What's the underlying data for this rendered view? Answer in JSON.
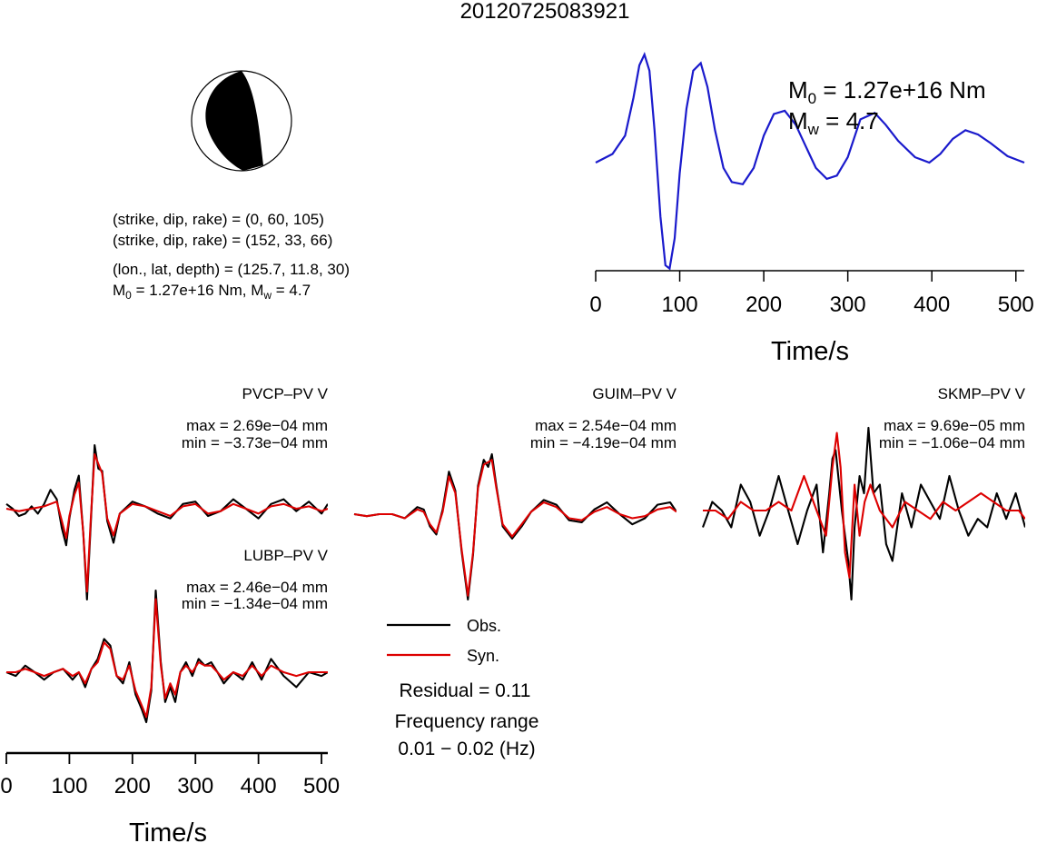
{
  "title": "20120725083921",
  "beachball": {
    "strike_dip_rake_1": "(strike, dip, rake) = (0, 60, 105)",
    "strike_dip_rake_2": "(strike, dip, rake) = (152, 33, 66)",
    "location": "(lon., lat, depth) = (125.7, 11.8, 30)",
    "moment_prefix": "M",
    "moment_sub": "0",
    "moment_value": " = 1.27e+16 Nm, M",
    "mw_sub": "w",
    "mw_value": " = 4.7"
  },
  "stf": {
    "m0_sym": "M",
    "m0_sub": "0",
    "m0_value": " = 1.27e+16 Nm",
    "mw_sym": "M",
    "mw_sub": "w",
    "mw_value": " = 4.7",
    "xlabel": "Time/s",
    "xticks": [
      "0",
      "100",
      "200",
      "300",
      "400",
      "500"
    ]
  },
  "stations": [
    {
      "name": "PVCP–PV V",
      "max": "max = 2.69e−04 mm",
      "min": "min = −3.73e−04 mm"
    },
    {
      "name": "GUIM–PV V",
      "max": "max = 2.54e−04 mm",
      "min": "min = −4.19e−04 mm"
    },
    {
      "name": "SKMP–PV V",
      "max": "max = 9.69e−05 mm",
      "min": "min = −1.06e−04 mm"
    },
    {
      "name": "LUBP–PV V",
      "max": "max = 2.46e−04 mm",
      "min": "min = −1.34e−04 mm"
    }
  ],
  "waveform_axis": {
    "xlabel": "Time/s",
    "xticks": [
      "0",
      "100",
      "200",
      "300",
      "400",
      "500"
    ]
  },
  "legend": {
    "obs_label": "Obs.",
    "syn_label": "Syn.",
    "residual": "Residual = 0.11",
    "freq_title": "Frequency range",
    "freq_value": "0.01 − 0.02 (Hz)"
  },
  "colors": {
    "observed": "#000000",
    "synthetic": "#dd0000",
    "stf": "#1a1acc"
  },
  "chart_data": [
    {
      "type": "line",
      "name": "source time function",
      "xlabel": "Time/s",
      "xlim": [
        0,
        510
      ],
      "ylim": [
        -1.0,
        1.0
      ],
      "x": [
        0,
        20,
        35,
        45,
        52,
        58,
        64,
        70,
        77,
        83,
        88,
        94,
        100,
        108,
        116,
        125,
        133,
        142,
        152,
        162,
        175,
        188,
        200,
        212,
        225,
        238,
        250,
        262,
        275,
        287,
        300,
        315,
        332,
        345,
        360,
        380,
        397,
        410,
        425,
        440,
        455,
        470,
        490,
        510
      ],
      "y": [
        0.0,
        0.08,
        0.25,
        0.6,
        0.9,
        1.0,
        0.85,
        0.3,
        -0.5,
        -0.95,
        -0.98,
        -0.7,
        -0.1,
        0.5,
        0.85,
        0.92,
        0.7,
        0.3,
        -0.05,
        -0.18,
        -0.2,
        -0.05,
        0.25,
        0.45,
        0.48,
        0.35,
        0.15,
        -0.05,
        -0.15,
        -0.12,
        0.05,
        0.4,
        0.46,
        0.35,
        0.2,
        0.05,
        0.0,
        0.08,
        0.22,
        0.3,
        0.26,
        0.18,
        0.06,
        0.0
      ]
    },
    {
      "type": "line",
      "name": "PVCP-PV V",
      "xlim": [
        0,
        510
      ],
      "ylim": [
        -0.000373,
        0.000269
      ],
      "series": [
        {
          "name": "Obs.",
          "x": [
            0,
            10,
            20,
            30,
            40,
            50,
            60,
            70,
            80,
            88,
            95,
            100,
            108,
            115,
            122,
            128,
            134,
            140,
            146,
            152,
            160,
            170,
            180,
            200,
            220,
            240,
            260,
            280,
            300,
            320,
            340,
            360,
            380,
            400,
            420,
            440,
            460,
            480,
            500,
            510
          ],
          "y": [
            2e-05,
            0.0,
            -3e-05,
            -2e-05,
            1e-05,
            -2e-05,
            2e-05,
            8e-05,
            4e-05,
            -8e-05,
            -0.00015,
            -4e-05,
            8e-05,
            0.00014,
            -0.0001,
            -0.000373,
            -6e-05,
            0.000269,
            0.00017,
            0.00016,
            -5e-05,
            -0.00014,
            -2e-05,
            3e-05,
            1e-05,
            -2e-05,
            -4e-05,
            2e-05,
            3e-05,
            -3e-05,
            -1e-05,
            4e-05,
            0.0,
            -4e-05,
            2e-05,
            4e-05,
            -1e-05,
            3e-05,
            -2e-05,
            2e-05
          ]
        },
        {
          "name": "Syn.",
          "x": [
            0,
            20,
            40,
            60,
            80,
            88,
            95,
            100,
            108,
            115,
            122,
            128,
            134,
            140,
            146,
            152,
            160,
            170,
            180,
            200,
            220,
            240,
            260,
            280,
            300,
            320,
            340,
            360,
            380,
            400,
            420,
            440,
            460,
            480,
            500,
            510
          ],
          "y": [
            0.0,
            -1e-05,
            0.0,
            1e-05,
            3e-05,
            -5e-05,
            -0.00012,
            -3e-05,
            6e-05,
            0.00011,
            -0.0001,
            -0.00034,
            -4e-05,
            0.00023,
            0.00019,
            0.00015,
            -4e-05,
            -0.00011,
            -2e-05,
            2e-05,
            1e-05,
            -1e-05,
            -3e-05,
            1e-05,
            2e-05,
            -2e-05,
            -1e-05,
            2e-05,
            0.0,
            -2e-05,
            1e-05,
            2e-05,
            0.0,
            1e-05,
            -1e-05,
            0.0
          ]
        }
      ]
    },
    {
      "type": "line",
      "name": "GUIM-PV V",
      "xlim": [
        0,
        510
      ],
      "ylim": [
        -0.000419,
        0.000254
      ],
      "series": [
        {
          "name": "Obs.",
          "x": [
            0,
            20,
            40,
            60,
            80,
            100,
            110,
            120,
            130,
            140,
            150,
            160,
            170,
            180,
            188,
            196,
            205,
            212,
            218,
            225,
            235,
            250,
            265,
            280,
            300,
            320,
            340,
            360,
            380,
            400,
            420,
            440,
            460,
            480,
            500,
            510
          ],
          "y": [
            0.0,
            -1e-05,
            0.0,
            0.0,
            -2e-05,
            3e-05,
            2e-05,
            -6e-05,
            -0.0001,
            2e-05,
            0.00018,
            0.0001,
            -0.00018,
            -0.000419,
            -0.0002,
            0.00012,
            0.00023,
            0.0002,
            0.000254,
            0.00012,
            -6e-05,
            -0.00012,
            -6e-05,
            1e-05,
            6e-05,
            4e-05,
            -3e-05,
            -4e-05,
            2e-05,
            5e-05,
            0.0,
            -5e-05,
            -2e-05,
            4e-05,
            5e-05,
            1e-05
          ]
        },
        {
          "name": "Syn.",
          "x": [
            0,
            20,
            40,
            60,
            80,
            100,
            110,
            120,
            130,
            140,
            150,
            160,
            170,
            180,
            188,
            196,
            205,
            212,
            218,
            225,
            235,
            250,
            265,
            280,
            300,
            320,
            340,
            360,
            380,
            400,
            420,
            440,
            460,
            480,
            500,
            510
          ],
          "y": [
            0.0,
            -1e-05,
            0.0,
            0.0,
            -2e-05,
            2e-05,
            1e-05,
            -5e-05,
            -9e-05,
            1e-05,
            0.00016,
            9e-05,
            -0.00017,
            -0.0004,
            -0.00019,
            0.00011,
            0.00021,
            0.00022,
            0.00023,
            0.00011,
            -5e-05,
            -0.00011,
            -5e-05,
            1e-05,
            5e-05,
            3e-05,
            -2e-05,
            -3e-05,
            1e-05,
            3e-05,
            0.0,
            -2e-05,
            -1e-05,
            2e-05,
            3e-05,
            1e-05
          ]
        }
      ]
    },
    {
      "type": "line",
      "name": "SKMP-PV V",
      "xlim": [
        0,
        510
      ],
      "ylim": [
        -0.000106,
        9.69e-05
      ],
      "series": [
        {
          "name": "Obs.",
          "x": [
            0,
            15,
            30,
            45,
            60,
            75,
            90,
            105,
            120,
            135,
            150,
            165,
            180,
            190,
            200,
            205,
            210,
            220,
            230,
            235,
            240,
            248,
            255,
            262,
            270,
            280,
            290,
            300,
            315,
            330,
            345,
            360,
            375,
            390,
            405,
            420,
            435,
            450,
            465,
            480,
            495,
            510
          ],
          "y": [
            -2e-05,
            1e-05,
            0.0,
            -2e-05,
            3e-05,
            1e-05,
            -3e-05,
            0.0,
            4e-05,
            0.0,
            -4e-05,
            0.0,
            3e-05,
            -5e-05,
            2e-05,
            6e-05,
            7e-05,
            0.0,
            -6e-05,
            -0.000106,
            -2e-05,
            4e-05,
            2e-05,
            9.6e-05,
            2e-05,
            3e-05,
            -4e-05,
            -6e-05,
            2e-05,
            -2e-05,
            3e-05,
            1e-05,
            -1e-05,
            4e-05,
            0.0,
            -3e-05,
            -1e-05,
            -2e-05,
            2e-05,
            -1e-05,
            2e-05,
            -2e-05
          ]
        },
        {
          "name": "Syn.",
          "x": [
            0,
            20,
            40,
            60,
            80,
            100,
            120,
            140,
            160,
            180,
            195,
            205,
            212,
            218,
            225,
            232,
            240,
            248,
            256,
            265,
            280,
            300,
            320,
            340,
            360,
            380,
            400,
            420,
            440,
            460,
            480,
            500,
            510
          ],
          "y": [
            0.0,
            0.0,
            -1e-05,
            1e-05,
            0.0,
            0.0,
            1e-05,
            0.0,
            4e-05,
            0.0,
            -3e-05,
            5e-05,
            9e-05,
            5e-05,
            -5e-05,
            -8e-05,
            3e-05,
            -3e-05,
            1e-05,
            3e-05,
            0.0,
            -2e-05,
            1e-05,
            0.0,
            -1e-05,
            1e-05,
            0.0,
            1e-05,
            2e-05,
            1e-05,
            0.0,
            0.0,
            -1e-05
          ]
        }
      ]
    },
    {
      "type": "line",
      "name": "LUBP-PV V",
      "xlim": [
        0,
        510
      ],
      "ylim": [
        -0.000134,
        0.000246
      ],
      "series": [
        {
          "name": "Obs.",
          "x": [
            0,
            15,
            30,
            45,
            60,
            75,
            90,
            105,
            115,
            125,
            135,
            145,
            155,
            165,
            175,
            185,
            195,
            205,
            215,
            222,
            230,
            237,
            245,
            252,
            260,
            268,
            276,
            285,
            295,
            305,
            315,
            325,
            335,
            345,
            360,
            375,
            390,
            405,
            420,
            440,
            460,
            480,
            500,
            510
          ],
          "y": [
            0.0,
            -1e-05,
            2e-05,
            0.0,
            -2e-05,
            0.0,
            1e-05,
            -2e-05,
            0.0,
            -4e-05,
            1e-05,
            4e-05,
            0.0001,
            8e-05,
            -1e-05,
            -3e-05,
            3e-05,
            -6e-05,
            -0.0001,
            -0.000134,
            -5e-05,
            0.000246,
            3e-05,
            -8e-05,
            -4e-05,
            -8e-05,
            0.0,
            3e-05,
            -1e-05,
            4e-05,
            2e-05,
            3e-05,
            0.0,
            -3e-05,
            0.0,
            -2e-05,
            3e-05,
            -2e-05,
            4e-05,
            -1e-05,
            -4e-05,
            0.0,
            -1e-05,
            0.0
          ]
        },
        {
          "name": "Syn.",
          "x": [
            0,
            15,
            30,
            45,
            60,
            75,
            90,
            105,
            115,
            125,
            135,
            145,
            155,
            165,
            175,
            185,
            195,
            205,
            215,
            222,
            230,
            237,
            245,
            252,
            260,
            268,
            276,
            285,
            295,
            305,
            315,
            325,
            335,
            345,
            360,
            375,
            390,
            405,
            420,
            440,
            460,
            480,
            500,
            510
          ],
          "y": [
            0.0,
            0.0,
            1e-05,
            0.0,
            -1e-05,
            0.0,
            1e-05,
            -1e-05,
            0.0,
            -3e-05,
            1e-05,
            3e-05,
            9e-05,
            7e-05,
            -1e-05,
            -2e-05,
            2e-05,
            -5e-05,
            -9e-05,
            -0.00012,
            -4e-05,
            0.00022,
            2e-05,
            -7e-05,
            -3e-05,
            -6e-05,
            0.0,
            2e-05,
            0.0,
            3e-05,
            2e-05,
            2e-05,
            0.0,
            -2e-05,
            0.0,
            -1e-05,
            2e-05,
            -1e-05,
            2e-05,
            0.0,
            -1e-05,
            0.0,
            0.0,
            0.0
          ]
        }
      ]
    }
  ]
}
